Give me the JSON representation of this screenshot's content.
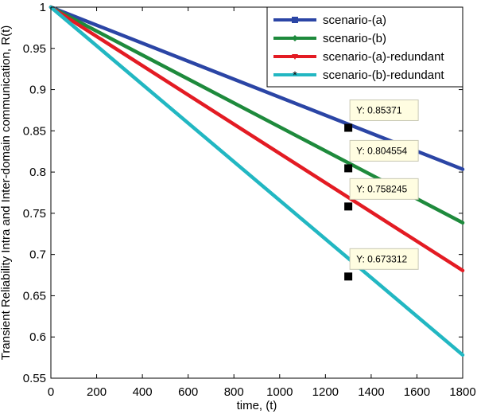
{
  "chart_data": {
    "type": "line",
    "title": "",
    "xlabel": "time, (t)",
    "ylabel": "Transient Reliability Intra and Inter-domain communication, R(t)",
    "xlim": [
      0,
      1800
    ],
    "ylim": [
      0.55,
      1.0
    ],
    "xticks": [
      0,
      200,
      400,
      600,
      800,
      1000,
      1200,
      1400,
      1600,
      1800
    ],
    "yticks": [
      0.55,
      0.6,
      0.65,
      0.7,
      0.75,
      0.8,
      0.85,
      0.9,
      0.95,
      1
    ],
    "ytick_labels": [
      "0.55",
      "0.6",
      "0.65",
      "0.7",
      "0.75",
      "0.8",
      "0.85",
      "0.9",
      "0.95",
      "1"
    ],
    "grid": false,
    "legend_position": "top-right",
    "series": [
      {
        "name": "scenario-(a)",
        "color": "#2b45a5",
        "marker": "square",
        "x": [
          0,
          1800
        ],
        "y": [
          1.0,
          0.8034
        ]
      },
      {
        "name": "scenario-(b)",
        "color": "#1e8a3c",
        "marker": "diamond",
        "x": [
          0,
          1800
        ],
        "y": [
          1.0,
          0.7385
        ]
      },
      {
        "name": "scenario-(a)-redundant",
        "color": "#e31b23",
        "marker": "triangle-down",
        "x": [
          0,
          1800
        ],
        "y": [
          1.0,
          0.6806
        ]
      },
      {
        "name": "scenario-(b)-redundant",
        "color": "#22b7c2",
        "marker": "star",
        "x": [
          0,
          1800
        ],
        "y": [
          1.0,
          0.5782
        ]
      }
    ],
    "annotations": [
      {
        "series": 0,
        "x": 1300,
        "y": 0.85371,
        "label": "Y: 0.85371"
      },
      {
        "series": 1,
        "x": 1300,
        "y": 0.804554,
        "label": "Y: 0.804554"
      },
      {
        "series": 2,
        "x": 1300,
        "y": 0.758245,
        "label": "Y: 0.758245"
      },
      {
        "series": 3,
        "x": 1300,
        "y": 0.673312,
        "label": "Y: 0.673312"
      }
    ]
  }
}
